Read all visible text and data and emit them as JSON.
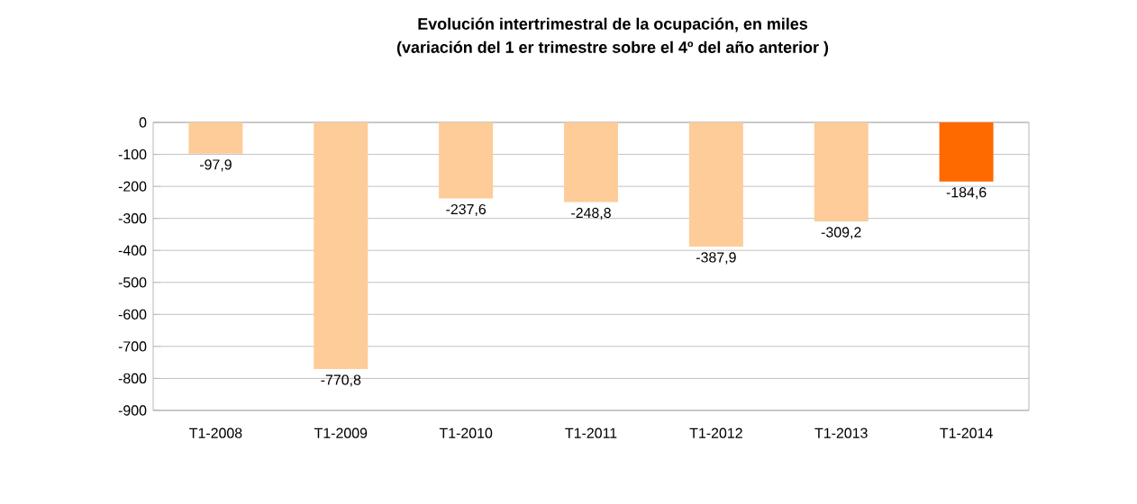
{
  "chart_data": {
    "type": "bar",
    "title": "Evolución intertrimestral de la ocupación, en miles",
    "subtitle": "(variación del 1 er trimestre  sobre el 4º del año anterior )",
    "categories": [
      "T1-2008",
      "T1-2009",
      "T1-2010",
      "T1-2011",
      "T1-2012",
      "T1-2013",
      "T1-2014"
    ],
    "values": [
      -97.9,
      -770.8,
      -237.6,
      -248.8,
      -387.9,
      -309.2,
      -184.6
    ],
    "colors": [
      "#fdcc99",
      "#fdcc99",
      "#fdcc99",
      "#fdcc99",
      "#fdcc99",
      "#fdcc99",
      "#ff6a00"
    ],
    "value_labels": [
      "-97,9",
      "-770,8",
      "-237,6",
      "-248,8",
      "-387,9",
      "-309,2",
      "-184,6"
    ],
    "ylim": [
      -900,
      0
    ],
    "yticks": [
      -900,
      -800,
      -700,
      -600,
      -500,
      -400,
      -300,
      -200,
      -100,
      0
    ],
    "grid": "y"
  }
}
